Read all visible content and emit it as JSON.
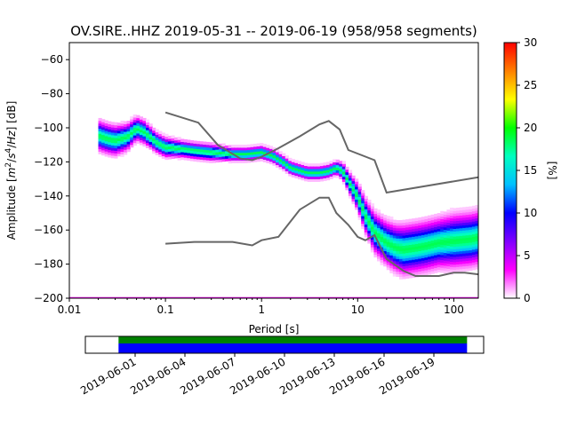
{
  "title": "OV.SIRE..HHZ   2019-05-31 -- 2019-06-19  (958/958 segments)",
  "chart_data": [
    {
      "type": "heatmap",
      "title": "OV.SIRE..HHZ   2019-05-31 -- 2019-06-19  (958/958 segments)",
      "xlabel": "Period [s]",
      "ylabel_parts": [
        "Amplitude [",
        "m",
        "2",
        "/",
        "s",
        "4",
        "/",
        "Hz",
        "] [dB]"
      ],
      "x_scale": "log",
      "xlim": [
        0.01,
        180
      ],
      "ylim": [
        -200,
        -50
      ],
      "x_ticks": [
        {
          "value": 0.01,
          "label": "0.01"
        },
        {
          "value": 0.1,
          "label": "0.1"
        },
        {
          "value": 1,
          "label": "1"
        },
        {
          "value": 10,
          "label": "10"
        },
        {
          "value": 100,
          "label": "100"
        }
      ],
      "y_ticks": [
        {
          "value": -60,
          "label": "−60"
        },
        {
          "value": -80,
          "label": "−80"
        },
        {
          "value": -100,
          "label": "−100"
        },
        {
          "value": -120,
          "label": "−120"
        },
        {
          "value": -140,
          "label": "−140"
        },
        {
          "value": -160,
          "label": "−160"
        },
        {
          "value": -180,
          "label": "−180"
        },
        {
          "value": -200,
          "label": "−200"
        }
      ],
      "colorbar": {
        "label": "[%]",
        "range": [
          0,
          30
        ],
        "ticks": [
          {
            "value": 0,
            "label": "0"
          },
          {
            "value": 5,
            "label": "5"
          },
          {
            "value": 10,
            "label": "10"
          },
          {
            "value": 15,
            "label": "15"
          },
          {
            "value": 20,
            "label": "20"
          },
          {
            "value": 25,
            "label": "25"
          },
          {
            "value": 30,
            "label": "30"
          }
        ],
        "colors": [
          "#ffffff",
          "#ff00ff",
          "#8000ff",
          "#0000ff",
          "#00c0ff",
          "#00ffc0",
          "#00ff00",
          "#ffff00",
          "#ff8000",
          "#ff0000"
        ]
      },
      "psd_mode": {
        "period": [
          0.02,
          0.025,
          0.03,
          0.04,
          0.05,
          0.06,
          0.08,
          0.1,
          0.15,
          0.2,
          0.3,
          0.5,
          0.7,
          1.0,
          1.3,
          1.7,
          2.0,
          3.0,
          4.0,
          5.0,
          6.0,
          7.0,
          8.0,
          10,
          12,
          15,
          20,
          25,
          30,
          40,
          50,
          70,
          100,
          150,
          180
        ],
        "amplitude": [
          -105,
          -107,
          -108,
          -106,
          -101,
          -103,
          -109,
          -112,
          -113,
          -114,
          -115,
          -116,
          -116,
          -115,
          -117,
          -121,
          -124,
          -127,
          -127,
          -126,
          -124,
          -126,
          -132,
          -141,
          -152,
          -162,
          -168,
          -171,
          -172,
          -171,
          -170,
          -168,
          -167,
          -166,
          -165
        ],
        "spread_db": [
          9,
          9,
          9,
          8,
          7,
          7,
          6,
          6,
          5,
          5,
          5,
          4,
          4,
          4,
          4,
          4,
          4,
          4,
          4,
          4,
          4,
          5,
          6,
          8,
          10,
          12,
          13,
          14,
          15,
          15,
          15,
          15,
          16,
          16,
          16
        ]
      },
      "series": [
        {
          "name": "",
          "color": "#666666",
          "x": [
            0.1,
            0.22,
            0.35,
            0.6,
            0.8,
            1.0,
            1.5,
            2.5,
            4.0,
            5.0,
            6.5,
            8.0,
            15,
            20,
            180
          ],
          "y": [
            -91,
            -97,
            -110,
            -118,
            -119,
            -117,
            -112,
            -105,
            -98,
            -96,
            -101,
            -113,
            -119,
            -138,
            -129
          ]
        },
        {
          "name": "",
          "color": "#666666",
          "x": [
            0.1,
            0.2,
            0.5,
            0.8,
            1.0,
            1.5,
            2.5,
            4.0,
            5.0,
            6.0,
            8.0,
            10,
            12,
            15,
            20,
            30,
            40,
            70,
            100,
            130,
            180
          ],
          "y": [
            -168,
            -167,
            -167,
            -169,
            -166,
            -164,
            -148,
            -141,
            -141,
            -150,
            -157,
            -164,
            -166,
            -163,
            -177,
            -184,
            -187,
            -187,
            -185,
            -185,
            -186
          ]
        }
      ],
      "nlnm_bottom_color": "#ff00ff"
    },
    {
      "type": "bar",
      "title": "",
      "x_type": "date",
      "x_range": [
        "2019-05-29",
        "2019-06-22"
      ],
      "x_ticks": [
        "2019-06-01",
        "2019-06-04",
        "2019-06-07",
        "2019-06-10",
        "2019-06-13",
        "2019-06-16",
        "2019-06-19"
      ],
      "series": [
        {
          "name": "",
          "color": "#008000",
          "start": "2019-05-31",
          "end": "2019-06-21"
        },
        {
          "name": "",
          "color": "#0000ff",
          "start": "2019-05-31",
          "end": "2019-06-21"
        }
      ]
    }
  ]
}
